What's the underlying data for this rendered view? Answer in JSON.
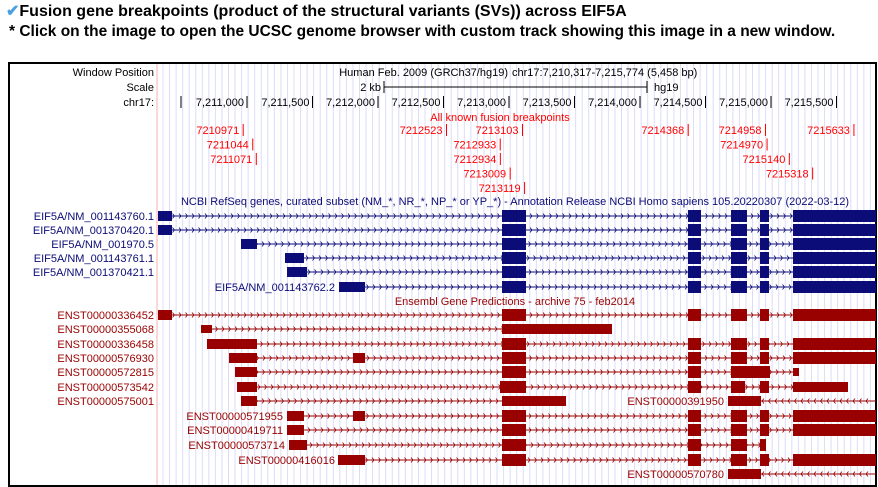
{
  "header": {
    "check_icon": "checkmark-icon",
    "title": "Fusion gene breakpoints (product of the structural variants (SVs)) across EIF5A",
    "note": "* Click on the image to open the UCSC genome browser with custom track showing this image in a new window."
  },
  "browser": {
    "window_position_label": "Window Position",
    "scale_label": "Scale",
    "chrom_label": "chr17:",
    "assembly": "Human Feb. 2009 (GRCh37/hg19)",
    "position": "chr17:7,210,317-7,215,774 (5,458 bp)",
    "scale_text": "2 kb",
    "scale_db": "hg19",
    "ruler_ticks": [
      "7,211,000",
      "7,211,500",
      "7,212,000",
      "7,212,500",
      "7,213,000",
      "7,213,500",
      "7,214,000",
      "7,214,500",
      "7,215,000",
      "7,215,500"
    ],
    "fusion_track_title": "All known fusion breakpoints",
    "breakpoints": [
      "7210971",
      "7211044",
      "7211071",
      "7212523",
      "7213103",
      "7212933",
      "7212934",
      "7213009",
      "7213119",
      "7214368",
      "7214958",
      "7214970",
      "7215140",
      "7215318",
      "7215633"
    ],
    "refseq_track_title": "NCBI RefSeq genes, curated subset (NM_*, NR_*, NP_* or YP_*) - Annotation Release NCBI Homo sapiens 105.20220307 (2022-03-12)",
    "refseq": [
      "EIF5A/NM_001143760.1",
      "EIF5A/NM_001370420.1",
      "EIF5A/NM_001970.5",
      "EIF5A/NM_001143761.1",
      "EIF5A/NM_001370421.1",
      "EIF5A/NM_001143762.2"
    ],
    "ensembl_track_title": "Ensembl Gene Predictions - archive 75 - feb2014",
    "ensembl": [
      "ENST00000336452",
      "ENST00000355068",
      "ENST00000336458",
      "ENST00000576930",
      "ENST00000572815",
      "ENST00000573542",
      "ENST00000575001",
      "ENST00000391950",
      "ENST00000571955",
      "ENST00000419711",
      "ENST00000573714",
      "ENST00000416016",
      "ENST00000570780"
    ],
    "colors": {
      "refseq": "#0c0c78",
      "ensembl": "#990000",
      "fusion": "#ff0000"
    }
  }
}
